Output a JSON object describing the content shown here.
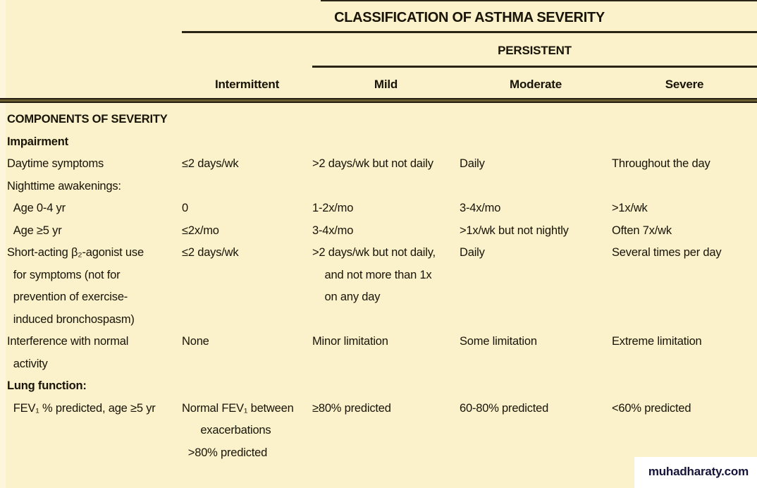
{
  "header": {
    "title": "CLASSIFICATION OF ASTHMA SEVERITY",
    "persistent_label": "PERSISTENT",
    "columns": [
      "Intermittent",
      "Mild",
      "Moderate",
      "Severe"
    ]
  },
  "table": {
    "rows": [
      {
        "label": "COMPONENTS OF SEVERITY",
        "bold": true,
        "cells": [
          "",
          "",
          "",
          ""
        ]
      },
      {
        "label": "Impairment",
        "bold": true,
        "cells": [
          "",
          "",
          "",
          ""
        ]
      },
      {
        "label": "Daytime symptoms",
        "cells": [
          "≤2 days/wk",
          ">2 days/wk but not daily",
          "Daily",
          "Throughout the day"
        ]
      },
      {
        "label": "Nighttime awakenings:",
        "cells": [
          "",
          "",
          "",
          ""
        ]
      },
      {
        "label": "  Age 0-4 yr",
        "cells": [
          "0",
          "1-2x/mo",
          "3-4x/mo",
          ">1x/wk"
        ]
      },
      {
        "label": "  Age ≥5 yr",
        "cells": [
          "≤2x/mo",
          "3-4x/mo",
          ">1x/wk but not nightly",
          "Often 7x/wk"
        ]
      },
      {
        "label": "Short-acting β₂-agonist use\n  for symptoms (not for\n  prevention of exercise-\n  induced bronchospasm)",
        "cells": [
          "≤2 days/wk",
          ">2 days/wk but not daily,\n    and not more than 1x\n    on any day",
          "Daily",
          "Several times per day"
        ]
      },
      {
        "label": "Interference with normal\n  activity",
        "cells": [
          "None",
          "Minor limitation",
          "Some limitation",
          "Extreme limitation"
        ]
      },
      {
        "label": "Lung function:",
        "bold": true,
        "cells": [
          "",
          "",
          "",
          ""
        ]
      },
      {
        "label": "  FEV₁ % predicted, age ≥5 yr",
        "cells": [
          "Normal FEV₁ between\n      exacerbations\n  >80% predicted",
          "≥80% predicted",
          "60-80% predicted",
          "<60% predicted"
        ]
      }
    ]
  },
  "watermark": {
    "text": "muhadharaty.com"
  },
  "colors": {
    "page_background": "#fbf1ca",
    "text": "#181407",
    "rule_dark": "#2a2416",
    "thick_rule_center": "#6a5e2e",
    "watermark_background": "#ffffff",
    "watermark_text": "#14143a"
  }
}
